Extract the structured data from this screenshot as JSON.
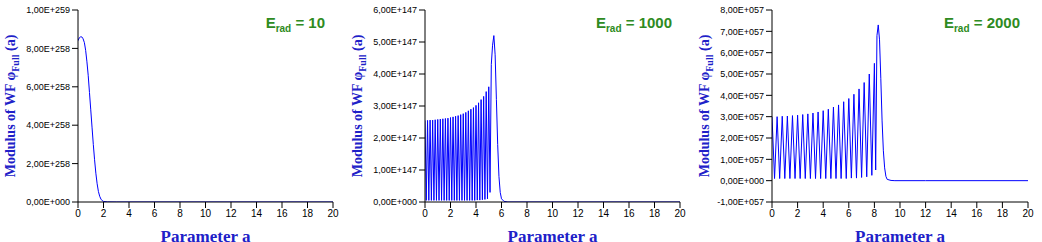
{
  "chart_data": [
    {
      "type": "line",
      "color": "#0000ff",
      "annotation": {
        "text": "E",
        "subscript": "rad",
        "suffix": "= 10"
      },
      "y_label": {
        "text": "Modulus of WF φ",
        "subscript": "Full",
        "suffix": "(a)"
      },
      "x_label": "Parameter a",
      "xlim": [
        0,
        20
      ],
      "xticks": [
        0,
        2,
        4,
        6,
        8,
        10,
        12,
        14,
        16,
        18,
        20
      ],
      "ylim": [
        0,
        1e+259
      ],
      "yticks": [
        {
          "value": 0,
          "label": "0,00E+000"
        },
        {
          "value": 2e+258,
          "label": "2,00E+258"
        },
        {
          "value": 4e+258,
          "label": "4,00E+258"
        },
        {
          "value": 6e+258,
          "label": "6,00E+258"
        },
        {
          "value": 8e+258,
          "label": "8,00E+258"
        },
        {
          "value": 1e+259,
          "label": "1,00E+259"
        }
      ],
      "x": [
        0,
        0.1,
        0.2,
        0.3,
        0.4,
        0.5,
        0.6,
        0.7,
        0.8,
        0.9,
        1.0,
        1.1,
        1.2,
        1.3,
        1.4,
        1.5,
        1.6,
        1.7,
        1.8,
        1.9,
        2.0,
        2.3,
        3,
        20
      ],
      "values": [
        8.4e+258,
        8.55e+258,
        8.6e+258,
        8.6e+258,
        8.5e+258,
        8.3e+258,
        7.9e+258,
        7.3e+258,
        6.6e+258,
        5.7e+258,
        4.8e+258,
        3.9e+258,
        3e+258,
        2.2e+258,
        1.5e+258,
        9.5e+257,
        5.5e+257,
        3e+257,
        1.5e+257,
        7e+256,
        3e+256,
        5e+255,
        0,
        0
      ]
    },
    {
      "type": "line",
      "color": "#0000ff",
      "annotation": {
        "text": "E",
        "subscript": "rad",
        "suffix": "= 1000"
      },
      "y_label": {
        "text": "Modulus of WF φ",
        "subscript": "Full",
        "suffix": "(a)"
      },
      "x_label": "Parameter a",
      "xlim": [
        0,
        20
      ],
      "xticks": [
        0,
        2,
        4,
        6,
        8,
        10,
        12,
        14,
        16,
        18,
        20
      ],
      "ylim": [
        0,
        6e+147
      ],
      "yticks": [
        {
          "value": 0,
          "label": "0,00E+000"
        },
        {
          "value": 1e+147,
          "label": "1,00E+147"
        },
        {
          "value": 2e+147,
          "label": "2,00E+147"
        },
        {
          "value": 3e+147,
          "label": "3,00E+147"
        },
        {
          "value": 4e+147,
          "label": "4,00E+147"
        },
        {
          "value": 5e+147,
          "label": "5,00E+147"
        },
        {
          "value": 6e+147,
          "label": "6,00E+147"
        }
      ],
      "x": [
        0,
        0.1,
        0.2,
        0.3,
        0.4,
        0.5,
        0.6,
        0.7,
        0.8,
        0.9,
        1.0,
        1.1,
        1.2,
        1.3,
        1.4,
        1.5,
        1.6,
        1.7,
        1.8,
        1.9,
        2.0,
        2.1,
        2.2,
        2.3,
        2.4,
        2.5,
        2.6,
        2.7,
        2.8,
        2.9,
        3.0,
        3.1,
        3.2,
        3.3,
        3.4,
        3.5,
        3.6,
        3.7,
        3.8,
        3.9,
        4.0,
        4.1,
        4.2,
        4.3,
        4.4,
        4.5,
        4.6,
        4.7,
        4.8,
        4.9,
        5.0,
        5.1,
        5.2,
        5.3,
        5.4,
        5.5,
        5.6,
        5.7,
        5.8,
        5.9,
        6.0,
        6.2,
        6.5,
        8,
        20
      ],
      "values": [
        2.55e+147,
        5e+145,
        2.55e+147,
        5e+145,
        2.56e+147,
        5e+145,
        2.56e+147,
        5e+145,
        2.57e+147,
        5e+145,
        2.58e+147,
        5e+145,
        2.59e+147,
        5e+145,
        2.6e+147,
        5e+145,
        2.61e+147,
        5e+145,
        2.62e+147,
        5e+145,
        2.64e+147,
        5e+145,
        2.66e+147,
        5e+145,
        2.68e+147,
        5e+145,
        2.7e+147,
        5e+145,
        2.73e+147,
        5e+145,
        2.76e+147,
        5e+145,
        2.8e+147,
        5e+145,
        2.85e+147,
        5e+145,
        2.9e+147,
        5e+145,
        2.95e+147,
        5e+145,
        3.02e+147,
        6e+145,
        3.1e+147,
        6e+145,
        3.2e+147,
        7e+145,
        3.3e+147,
        8e+145,
        3.45e+147,
        1e+146,
        3.6e+147,
        3e+146,
        4.3e+147,
        4.9e+147,
        5.2e+147,
        4.6e+147,
        3.2e+147,
        1.8e+147,
        8e+146,
        3e+146,
        1e+146,
        2e+145,
        0,
        0,
        0
      ]
    },
    {
      "type": "line",
      "color": "#0000ff",
      "annotation": {
        "text": "E",
        "subscript": "rad",
        "suffix": "= 2000"
      },
      "y_label": {
        "text": "Modulus of WF φ",
        "subscript": "Full",
        "suffix": "(a)"
      },
      "x_label": "Parameter a",
      "xlim": [
        0,
        20
      ],
      "xticks": [
        0,
        2,
        4,
        6,
        8,
        10,
        12,
        14,
        16,
        18,
        20
      ],
      "ylim": [
        -1e+57,
        8e+57
      ],
      "yticks": [
        {
          "value": -1e+57,
          "label": "-1,00E+057"
        },
        {
          "value": 0,
          "label": "0,00E+000"
        },
        {
          "value": 1e+57,
          "label": "1,00E+057"
        },
        {
          "value": 2e+57,
          "label": "2,00E+057"
        },
        {
          "value": 3e+57,
          "label": "3,00E+057"
        },
        {
          "value": 4e+57,
          "label": "4,00E+057"
        },
        {
          "value": 5e+57,
          "label": "5,00E+057"
        },
        {
          "value": 6e+57,
          "label": "6,00E+057"
        },
        {
          "value": 7e+57,
          "label": "7,00E+057"
        },
        {
          "value": 8e+57,
          "label": "8,00E+057"
        }
      ],
      "x": [
        0,
        0.2,
        0.4,
        0.6,
        0.8,
        1.0,
        1.2,
        1.4,
        1.6,
        1.8,
        2.0,
        2.2,
        2.4,
        2.6,
        2.8,
        3.0,
        3.2,
        3.4,
        3.6,
        3.8,
        4.0,
        4.2,
        4.4,
        4.6,
        4.8,
        5.0,
        5.2,
        5.4,
        5.6,
        5.8,
        6.0,
        6.2,
        6.4,
        6.6,
        6.8,
        7.0,
        7.2,
        7.4,
        7.6,
        7.8,
        8.0,
        8.1,
        8.2,
        8.3,
        8.4,
        8.5,
        8.6,
        8.7,
        8.8,
        8.9,
        9.0,
        9.3,
        9.6,
        12,
        20
      ],
      "values": [
        3e+57,
        1e+56,
        3e+57,
        1e+56,
        3.02e+57,
        1e+56,
        3.03e+57,
        1e+56,
        3.05e+57,
        1e+56,
        3.07e+57,
        1e+56,
        3.1e+57,
        1e+56,
        3.13e+57,
        1e+56,
        3.17e+57,
        1e+56,
        3.22e+57,
        1e+56,
        3.28e+57,
        1e+56,
        3.35e+57,
        1e+56,
        3.45e+57,
        1e+56,
        3.55e+57,
        1e+56,
        3.7e+57,
        1e+56,
        3.85e+57,
        1.2e+56,
        4.05e+57,
        1.2e+56,
        4.3e+57,
        1.5e+56,
        4.6e+57,
        1.8e+56,
        5e+57,
        2.5e+56,
        5.5e+57,
        5e+56,
        6.8e+57,
        7.3e+57,
        6.6e+57,
        4.8e+57,
        2.8e+57,
        1.4e+57,
        6e+56,
        2e+56,
        6e+55,
        1e+55,
        0,
        0,
        0
      ]
    }
  ]
}
